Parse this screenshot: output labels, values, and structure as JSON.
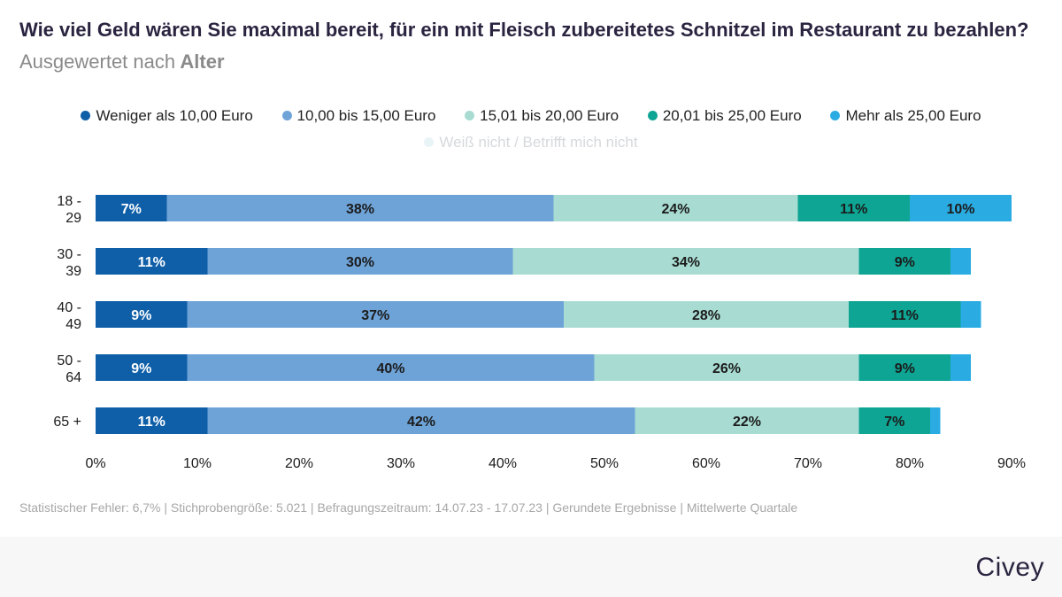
{
  "title": {
    "main": "Wie viel Geld wären Sie maximal bereit, für ein mit Fleisch zubereitetes Schnitzel im Restaurant zu bezahlen?",
    "sub": "Ausgewertet nach",
    "sub_strong": "Alter"
  },
  "colors": {
    "s1": "#0e5ea8",
    "s2": "#6ea3d8",
    "s3": "#a8dcd2",
    "s4": "#0ea594",
    "s5": "#2aace3",
    "s6": "#e9f4f6"
  },
  "chart_data": {
    "type": "bar",
    "orientation": "horizontal",
    "stacked": true,
    "categories": [
      "18 - 29",
      "30 - 39",
      "40 - 49",
      "50 - 64",
      "65 +"
    ],
    "series": [
      {
        "name": "Weniger als 10,00 Euro",
        "values": [
          7,
          11,
          9,
          9,
          11
        ]
      },
      {
        "name": "10,00 bis 15,00 Euro",
        "values": [
          38,
          30,
          37,
          40,
          42
        ]
      },
      {
        "name": "15,01 bis 20,00 Euro",
        "values": [
          24,
          34,
          28,
          26,
          22
        ]
      },
      {
        "name": "20,01 bis 25,00 Euro",
        "values": [
          11,
          9,
          11,
          9,
          7
        ]
      },
      {
        "name": "Mehr als 25,00 Euro",
        "values": [
          10,
          2,
          2,
          2,
          1
        ]
      },
      {
        "name": "Weiß nicht / Betrifft mich nicht",
        "values": [
          0,
          0,
          0,
          0,
          0
        ]
      }
    ],
    "x_ticks": [
      "0%",
      "10%",
      "20%",
      "30%",
      "40%",
      "50%",
      "60%",
      "70%",
      "80%",
      "90%"
    ],
    "xlim": [
      0,
      90
    ],
    "label_threshold": 5,
    "legend_position": "top"
  },
  "footer": "Statistischer Fehler: 6,7% | Stichprobengröße: 5.021 | Befragungszeitraum: 14.07.23 - 17.07.23 | Gerundete Ergebnisse | Mittelwerte Quartale",
  "logo": "Civey"
}
